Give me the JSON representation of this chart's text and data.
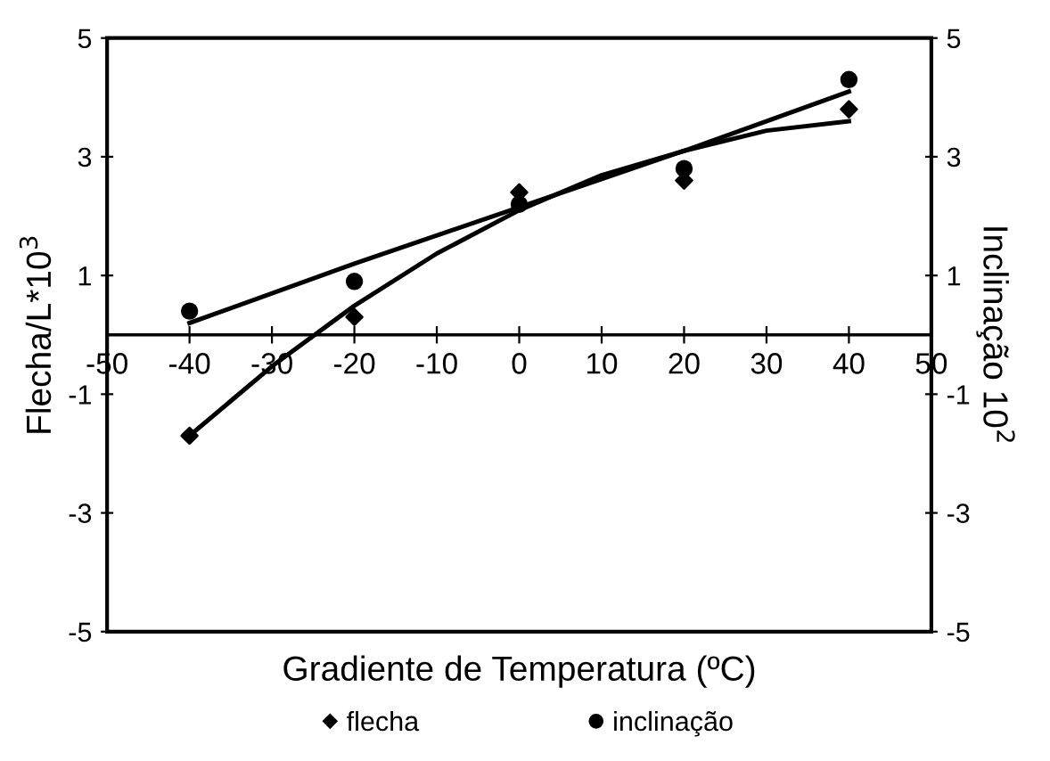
{
  "chart_data": {
    "type": "scatter",
    "xlabel": "Gradiente de Temperatura (ºC)",
    "ylabel": "Flecha/L*10$^{3}$",
    "y2label": "Inclinação 10$^{2}$",
    "xlim": [
      -50,
      50
    ],
    "xticks": [
      -50,
      -40,
      -30,
      -20,
      -10,
      0,
      10,
      20,
      30,
      40,
      50
    ],
    "ylim": [
      -5,
      5
    ],
    "yticks": [
      -5,
      -3,
      -1,
      1,
      3,
      5
    ],
    "y2lim": [
      -5,
      5
    ],
    "y2ticks": [
      -5,
      -3,
      -1,
      1,
      3,
      5
    ],
    "grid": false,
    "legend": "bottom",
    "series": [
      {
        "name": "flecha",
        "marker": "diamond",
        "color": "#000000",
        "x": [
          -40,
          -20,
          0,
          20,
          40
        ],
        "values": [
          -1.7,
          0.3,
          2.4,
          2.6,
          3.8
        ]
      },
      {
        "name": "inclinação",
        "marker": "circle",
        "color": "#000000",
        "x": [
          -40,
          -20,
          0,
          20,
          40
        ],
        "values": [
          0.4,
          0.9,
          2.2,
          2.8,
          4.3
        ]
      },
      {
        "type": "line",
        "marker": "none",
        "color": "#000000",
        "x": [
          -40,
          -30,
          -20,
          -10,
          0,
          10,
          20,
          30,
          40
        ],
        "values": [
          -1.7,
          -0.53,
          0.49,
          1.37,
          2.1,
          2.69,
          3.1,
          3.44,
          3.6
        ]
      },
      {
        "type": "line",
        "marker": "none",
        "color": "#000000",
        "x": [
          -40,
          -20,
          0,
          20,
          40
        ],
        "values": [
          0.2,
          1.2,
          2.15,
          3.1,
          4.1
        ]
      }
    ]
  }
}
